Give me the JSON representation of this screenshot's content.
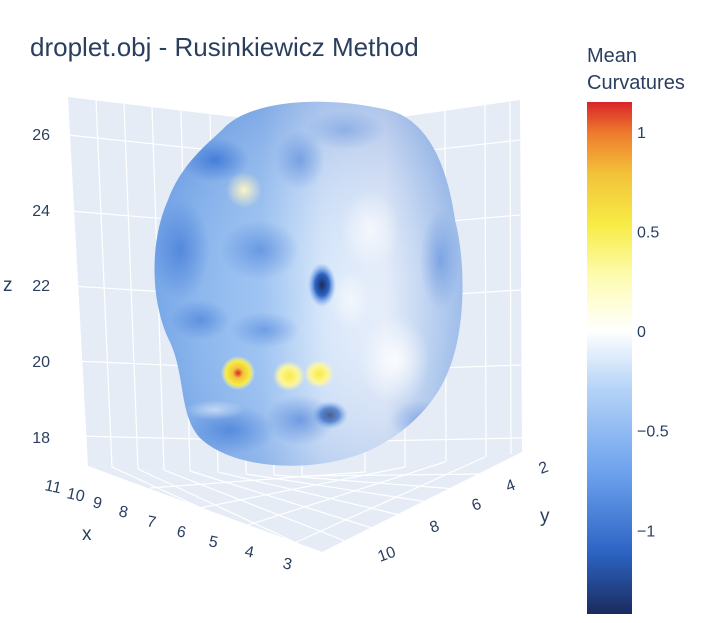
{
  "chart_data": {
    "type": "surface3d",
    "title": "droplet.obj - Rusinkiewicz Method",
    "axes": {
      "x": {
        "label": "x",
        "ticks": [
          "11",
          "10",
          "9",
          "8",
          "7",
          "6",
          "5",
          "4",
          "3"
        ]
      },
      "y": {
        "label": "y",
        "ticks": [
          "2",
          "4",
          "6",
          "8",
          "10"
        ]
      },
      "z": {
        "label": "z",
        "ticks": [
          "26",
          "24",
          "22",
          "20",
          "18"
        ]
      }
    },
    "colorbar": {
      "title_line1": "Mean",
      "title_line2": "Curvatures",
      "ticks": [
        "1",
        "0.5",
        "0",
        "−0.5",
        "−1"
      ],
      "tick_values": [
        1,
        0.5,
        0,
        -0.5,
        -1
      ],
      "range": [
        -1.42,
        1.15
      ],
      "colorscale": [
        "#1b2b5e",
        "#2d64c4",
        "#6ea3ee",
        "#b5d3f7",
        "#ffffff",
        "#fdfcb0",
        "#f7ec45",
        "#f3c23a",
        "#ee7a2c",
        "#d8242a"
      ]
    },
    "surface_hotspots": [
      {
        "label": "yellow-patch-upper-left",
        "value": 0.45
      },
      {
        "label": "hot-spot-left",
        "value": 1.15
      },
      {
        "label": "yellow-patch-middle",
        "value": 0.55
      },
      {
        "label": "yellow-patch-right",
        "value": 0.5
      },
      {
        "label": "dark-spot-center",
        "value": -1.3
      }
    ]
  }
}
